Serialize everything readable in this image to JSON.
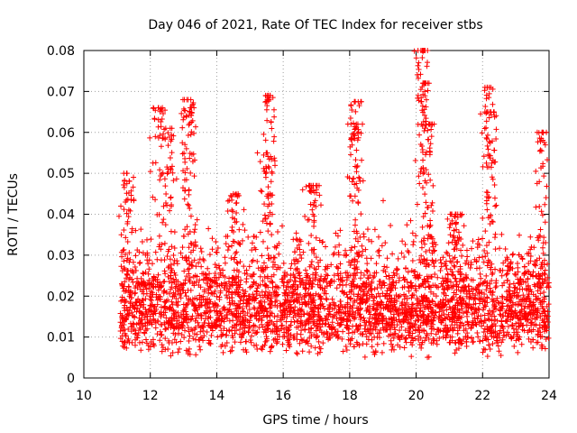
{
  "chart_data": {
    "type": "scatter",
    "title": "Day 046 of 2021, Rate Of TEC Index for receiver stbs",
    "xlabel": "GPS time / hours",
    "ylabel": "ROTI / TECUs",
    "xlim": [
      10,
      24
    ],
    "ylim": [
      0,
      0.08
    ],
    "xticks": [
      10,
      12,
      14,
      16,
      18,
      20,
      22,
      24
    ],
    "yticks": [
      0,
      0.01,
      0.02,
      0.03,
      0.04,
      0.05,
      0.06,
      0.07,
      0.08
    ],
    "xtick_labels": [
      "10",
      "12",
      "14",
      "16",
      "18",
      "20",
      "22",
      "24"
    ],
    "ytick_labels": [
      "0",
      "0.01",
      "0.02",
      "0.03",
      "0.04",
      "0.05",
      "0.06",
      "0.07",
      "0.08"
    ],
    "grid": true,
    "marker": "+",
    "color": "#ff0000",
    "x_data_range": [
      11.1,
      24
    ],
    "core_band": [
      0.005,
      0.032
    ],
    "peaks": [
      {
        "x": 11.3,
        "y": 0.05
      },
      {
        "x": 12.25,
        "y": 0.066
      },
      {
        "x": 12.6,
        "y": 0.061
      },
      {
        "x": 13.1,
        "y": 0.068
      },
      {
        "x": 13.2,
        "y": 0.066
      },
      {
        "x": 14.5,
        "y": 0.045
      },
      {
        "x": 15.6,
        "y": 0.069
      },
      {
        "x": 15.5,
        "y": 0.055
      },
      {
        "x": 16.9,
        "y": 0.047
      },
      {
        "x": 18.15,
        "y": 0.0675
      },
      {
        "x": 18.2,
        "y": 0.062
      },
      {
        "x": 20.2,
        "y": 0.08
      },
      {
        "x": 20.25,
        "y": 0.072
      },
      {
        "x": 20.4,
        "y": 0.062
      },
      {
        "x": 21.2,
        "y": 0.04
      },
      {
        "x": 22.2,
        "y": 0.071
      },
      {
        "x": 22.25,
        "y": 0.065
      },
      {
        "x": 23.8,
        "y": 0.06
      }
    ],
    "point_count": 2600
  }
}
